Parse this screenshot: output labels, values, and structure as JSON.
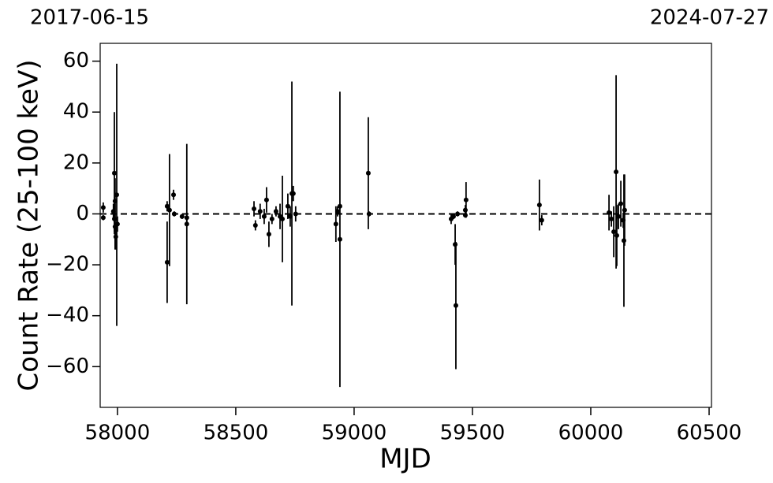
{
  "chart_data": {
    "type": "errorbar",
    "top_labels": [
      "2017-06-15",
      "2024-07-27"
    ],
    "xlabel": "MJD",
    "ylabel": "Count Rate (25-100 keV)",
    "color": "#000000",
    "hline": 0,
    "xlim": [
      57927,
      60510
    ],
    "ylim": [
      -76,
      67
    ],
    "xticks": [
      58000,
      58500,
      59000,
      59500,
      60000,
      60500
    ],
    "yticks": [
      {
        "value": -60,
        "label": "−60"
      },
      {
        "value": -40,
        "label": "−40"
      },
      {
        "value": -20,
        "label": "−20"
      },
      0,
      20,
      40,
      60
    ],
    "x": [
      57940,
      57940,
      57987,
      57990,
      57997,
      57993,
      57990,
      58000,
      57983,
      57987,
      58210,
      58210,
      58220,
      58237,
      58240,
      58273,
      58293,
      58293,
      58577,
      58583,
      58603,
      58620,
      58630,
      58640,
      58653,
      58670,
      58687,
      58697,
      58720,
      58730,
      58737,
      58743,
      58753,
      58923,
      58930,
      58940,
      58940,
      59060,
      59063,
      59410,
      59420,
      59427,
      59430,
      59437,
      59470,
      59473,
      59470,
      59783,
      59793,
      60077,
      60087,
      60097,
      60107,
      60110,
      60117,
      60127,
      60137,
      60140,
      60143
    ],
    "values": [
      2.5,
      -1.5,
      16,
      5,
      7.5,
      -9,
      -5,
      -4,
      1,
      -2,
      -19,
      3,
      1.5,
      7.5,
      0,
      -1,
      -4,
      -1.5,
      2,
      -4.5,
      1,
      -1,
      5.5,
      -8,
      -2,
      1,
      -1,
      -2,
      3,
      -1,
      8,
      8,
      0,
      -4,
      1,
      -10,
      3,
      16,
      0,
      -2,
      -1,
      -12,
      -36,
      0,
      1.5,
      5.5,
      -0.5,
      3.5,
      -2.5,
      0.5,
      -2,
      -7,
      16.5,
      -8.5,
      -1,
      4,
      -2.5,
      -10.5,
      1.5
    ],
    "errors": [
      2,
      1,
      24,
      9,
      51.5,
      5,
      9,
      3,
      3,
      5,
      16,
      2,
      22,
      2,
      1,
      1,
      31.5,
      2,
      3,
      2,
      3,
      3,
      5,
      5,
      2,
      2,
      5,
      17,
      5,
      4,
      44,
      3,
      3,
      7,
      2,
      58,
      1,
      22,
      1,
      2,
      1,
      8,
      25,
      1,
      2,
      7,
      1,
      10,
      2,
      7,
      3,
      10,
      38,
      12,
      5,
      9,
      3,
      26,
      14
    ]
  }
}
